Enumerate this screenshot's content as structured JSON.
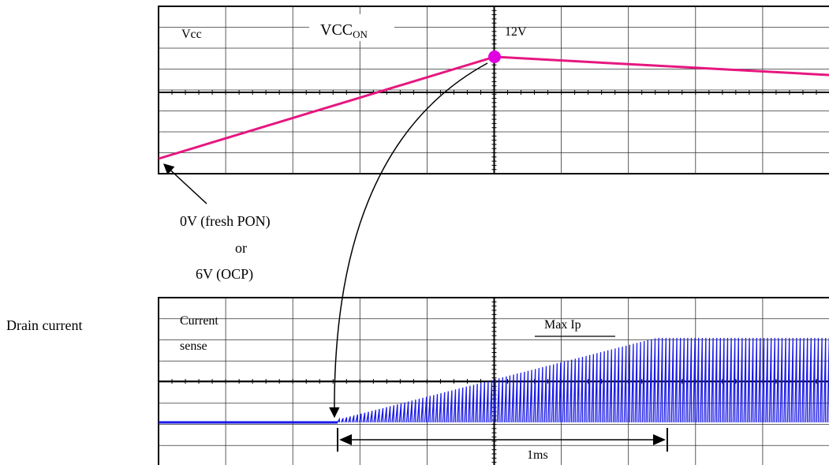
{
  "top_scope": {
    "channel_label": "Vcc",
    "vcc_on_main": "VCC",
    "vcc_on_sub": "ON",
    "peak_label": "12V",
    "trace_color": "#e6177f",
    "marker_color": "#e000e0"
  },
  "annotation": {
    "line1": "0V (fresh PON)",
    "line2": "or",
    "line3": "6V (OCP)"
  },
  "bottom_scope": {
    "side_label": "Drain current",
    "channel_label_1": "Current",
    "channel_label_2": "sense",
    "max_label": "Max Ip",
    "time_label": "1ms",
    "trace_color": "#1a1ae6"
  }
}
